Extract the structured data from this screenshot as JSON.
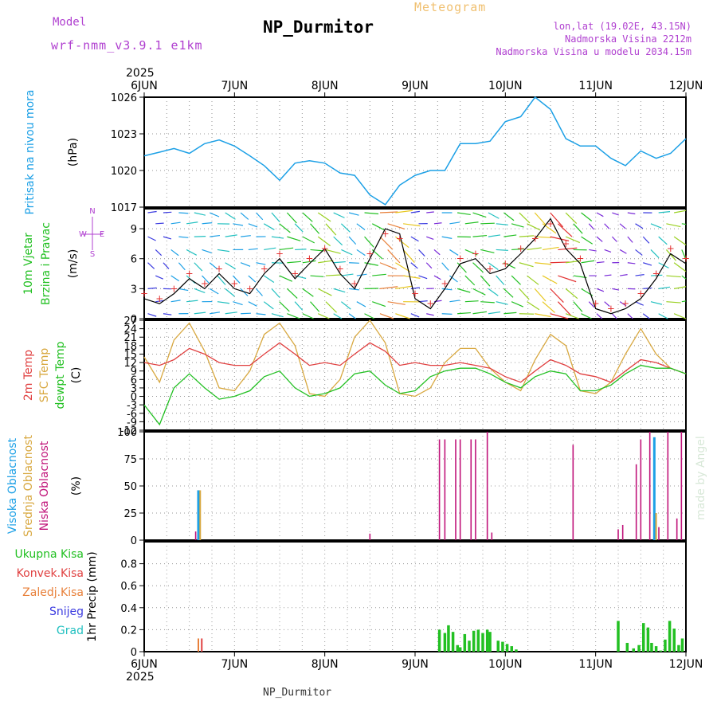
{
  "header": {
    "model_label": "Model",
    "model_name": "wrf-nmm_v3.9.1 e1km",
    "app_title": "Meteogram",
    "station": "NP_Durmitor",
    "location_lines": [
      "lon,lat (19.02E, 43.15N)",
      "Nadmorska Visina 2212m",
      "Nadmorska Visina u modelu 2034.15m"
    ]
  },
  "footer": {
    "station": "NP_Durmitor"
  },
  "time_axis": {
    "year": "2025",
    "ticks": [
      "6JUN",
      "7JUN",
      "8JUN",
      "9JUN",
      "10JUN",
      "11JUN",
      "12JUN"
    ]
  },
  "watermark": "made by Angel",
  "colors": {
    "pressure": "#1ca0e6",
    "wind_speed": "#000000",
    "gust": "#e23030",
    "temp2m": "#e04040",
    "sfc_temp": "#d8a840",
    "dewpoint": "#22c022",
    "high_cloud": "#1ca0e6",
    "mid_cloud": "#d8a840",
    "low_cloud": "#c0147a",
    "total_precip": "#22c022",
    "conv_precip": "#e04040",
    "frozen_precip": "#e8803a",
    "snow": "#3b3be0",
    "hail": "#22c0c0",
    "label_purple": "#b040d0",
    "grid": "#999999"
  },
  "chart_data": [
    {
      "type": "line",
      "panel": "pressure",
      "ylabel_lines": [
        "Pritisak na nivou mora",
        "(hPa)"
      ],
      "ylim": [
        1017,
        1026
      ],
      "yticks": [
        "1017",
        "1020",
        "1023",
        "1026"
      ],
      "x_days": [
        0,
        0.17,
        0.33,
        0.5,
        0.67,
        0.83,
        1.0,
        1.17,
        1.33,
        1.5,
        1.67,
        1.83,
        2.0,
        2.17,
        2.33,
        2.5,
        2.67,
        2.83,
        3.0,
        3.17,
        3.33,
        3.5,
        3.67,
        3.83,
        4.0,
        4.17,
        4.33,
        4.5,
        4.67,
        4.83,
        5.0,
        5.17,
        5.33,
        5.5,
        5.67,
        5.83,
        6.0
      ],
      "series": [
        {
          "values": [
            1021.2,
            1021.5,
            1021.8,
            1021.4,
            1022.2,
            1022.5,
            1022.0,
            1021.2,
            1020.4,
            1019.2,
            1020.6,
            1020.8,
            1020.6,
            1019.8,
            1019.6,
            1018.0,
            1017.2,
            1018.8,
            1019.6,
            1020.0,
            1020.0,
            1022.2,
            1022.2,
            1022.4,
            1024.0,
            1024.4,
            1026.0,
            1025.0,
            1022.6,
            1022.0,
            1022.0,
            1021.0,
            1020.4,
            1021.6,
            1021.0,
            1021.4,
            1022.6
          ]
        }
      ]
    },
    {
      "type": "line",
      "panel": "wind",
      "ylabel_lines": [
        "10m Vjetar",
        "Brzina i Pravac",
        "(m/s)"
      ],
      "compass": {
        "n": "N",
        "s": "S",
        "e": "E",
        "w": "W"
      },
      "ylim": [
        0,
        11
      ],
      "yticks": [
        "0",
        "3",
        "6",
        "9"
      ],
      "x_days": [
        0,
        0.17,
        0.33,
        0.5,
        0.67,
        0.83,
        1.0,
        1.17,
        1.33,
        1.5,
        1.67,
        1.83,
        2.0,
        2.17,
        2.33,
        2.5,
        2.67,
        2.83,
        3.0,
        3.17,
        3.33,
        3.5,
        3.67,
        3.83,
        4.0,
        4.17,
        4.33,
        4.5,
        4.67,
        4.83,
        5.0,
        5.17,
        5.33,
        5.5,
        5.67,
        5.83,
        6.0
      ],
      "series": [
        {
          "values": [
            2.0,
            1.5,
            2.5,
            4.0,
            3.0,
            4.5,
            3.0,
            2.5,
            4.5,
            6.0,
            4.0,
            5.5,
            7.0,
            4.5,
            3.0,
            6.0,
            9.0,
            8.5,
            2.0,
            1.0,
            3.0,
            5.5,
            6.0,
            4.5,
            5.0,
            6.5,
            8.0,
            10.0,
            7.0,
            5.5,
            1.0,
            0.5,
            1.0,
            2.0,
            4.0,
            6.5,
            5.5
          ]
        },
        {
          "values": [
            2.5,
            2.0,
            3.0,
            4.5,
            3.5,
            5.0,
            3.5,
            3.0,
            5.0,
            6.5,
            4.5,
            6.0,
            7.0,
            5.0,
            3.5,
            6.5,
            8.5,
            8.0,
            2.5,
            1.5,
            3.5,
            6.0,
            6.5,
            5.0,
            5.5,
            7.0,
            8.0,
            9.5,
            7.5,
            6.0,
            1.5,
            1.0,
            1.5,
            2.5,
            4.5,
            7.0,
            6.0
          ]
        }
      ]
    },
    {
      "type": "line",
      "panel": "temperature",
      "ylabel_lines": [
        "2m Temp",
        "SFC Temp",
        "dewpt Temp",
        "(C)"
      ],
      "ylim": [
        -12,
        27
      ],
      "yticks": [
        "-12",
        "-9",
        "-6",
        "-3",
        "0",
        "3",
        "6",
        "9",
        "12",
        "15",
        "18",
        "21",
        "24",
        "27"
      ],
      "x_days": [
        0,
        0.17,
        0.33,
        0.5,
        0.67,
        0.83,
        1.0,
        1.17,
        1.33,
        1.5,
        1.67,
        1.83,
        2.0,
        2.17,
        2.33,
        2.5,
        2.67,
        2.83,
        3.0,
        3.17,
        3.33,
        3.5,
        3.67,
        3.83,
        4.0,
        4.17,
        4.33,
        4.5,
        4.67,
        4.83,
        5.0,
        5.17,
        5.33,
        5.5,
        5.67,
        5.83,
        6.0
      ],
      "series": [
        {
          "values": [
            12,
            11,
            13,
            17,
            15,
            12,
            11,
            11,
            15,
            19,
            15,
            11,
            12,
            11,
            15,
            19,
            16,
            11,
            12,
            11,
            11,
            12,
            11,
            10,
            7,
            5,
            9,
            13,
            11,
            8,
            7,
            5,
            9,
            13,
            12,
            10,
            8
          ]
        },
        {
          "values": [
            14,
            5,
            20,
            26,
            16,
            3,
            2,
            9,
            22,
            26,
            18,
            1,
            0,
            6,
            21,
            27,
            19,
            1,
            0,
            3,
            12,
            17,
            17,
            10,
            5,
            2,
            13,
            22,
            18,
            2,
            1,
            5,
            15,
            24,
            15,
            10,
            8
          ]
        },
        {
          "values": [
            -3,
            -10,
            3,
            8,
            3,
            -1,
            0,
            2,
            7,
            9,
            3,
            0,
            1,
            3,
            8,
            9,
            4,
            1,
            2,
            7,
            9,
            10,
            10,
            8,
            5,
            3,
            7,
            9,
            8,
            2,
            2,
            4,
            8,
            11,
            10,
            10,
            8
          ]
        }
      ]
    },
    {
      "type": "bar",
      "panel": "cloud",
      "ylabel_lines": [
        "Visoka Oblacnost",
        "Srednja Oblacnost",
        "Niska Oblacnost",
        "(%)"
      ],
      "ylim": [
        0,
        100
      ],
      "yticks": [
        "0",
        "25",
        "50",
        "75",
        "100"
      ],
      "series": [
        {
          "name": "Visoka Oblacnost",
          "x_days": [
            0.6,
            5.65
          ],
          "values": [
            46,
            95
          ]
        },
        {
          "name": "Srednja Oblacnost",
          "x_days": [
            0.62,
            5.67
          ],
          "values": [
            46,
            25
          ]
        },
        {
          "name": "Niska Oblacnost",
          "x_days": [
            0.57,
            2.5,
            3.27,
            3.33,
            3.45,
            3.5,
            3.62,
            3.67,
            3.8,
            3.85,
            4.75,
            5.25,
            5.3,
            5.45,
            5.5,
            5.6,
            5.7,
            5.8,
            5.9,
            5.95
          ],
          "values": [
            8,
            6,
            93,
            93,
            93,
            93,
            93,
            93,
            100,
            7,
            88,
            10,
            14,
            70,
            93,
            100,
            12,
            100,
            20,
            100
          ]
        }
      ]
    },
    {
      "type": "bar",
      "panel": "precip",
      "ylabel": "1hr Precip (mm)",
      "legend": [
        "Ukupna Kisa",
        "Konvek.Kisa",
        "Zaledj.Kisa",
        "Snijeg",
        "Grad"
      ],
      "ylim": [
        0,
        1.0
      ],
      "yticks": [
        "0",
        "0.2",
        "0.4",
        "0.6",
        "0.8"
      ],
      "series": [
        {
          "name": "Ukupna Kisa",
          "x_days": [
            3.27,
            3.33,
            3.37,
            3.42,
            3.47,
            3.5,
            3.55,
            3.6,
            3.65,
            3.7,
            3.75,
            3.8,
            3.83,
            3.92,
            3.97,
            4.02,
            4.07,
            4.12,
            5.25,
            5.35,
            5.42,
            5.48,
            5.53,
            5.58,
            5.62,
            5.67,
            5.72,
            5.77,
            5.82,
            5.87,
            5.92,
            5.96
          ],
          "values": [
            0.2,
            0.17,
            0.24,
            0.18,
            0.06,
            0.04,
            0.16,
            0.1,
            0.19,
            0.2,
            0.17,
            0.2,
            0.18,
            0.1,
            0.09,
            0.07,
            0.05,
            0.02,
            0.28,
            0.08,
            0.03,
            0.06,
            0.26,
            0.22,
            0.08,
            0.05,
            0.01,
            0.11,
            0.28,
            0.21,
            0.06,
            0.12
          ]
        },
        {
          "name": "Konvek.Kisa",
          "x_days": [
            0.62
          ],
          "values": [
            0.12
          ]
        },
        {
          "name": "Zaledj.Kisa",
          "x_days": [
            0.6
          ],
          "values": [
            0.12
          ]
        }
      ]
    }
  ]
}
